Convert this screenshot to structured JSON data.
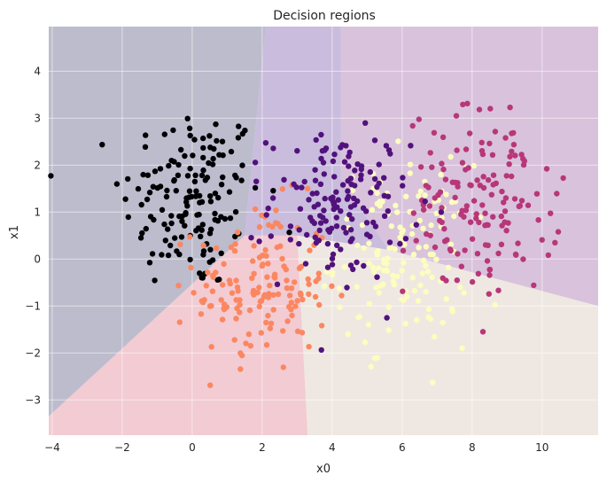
{
  "chart_data": {
    "type": "scatter",
    "title": "Decision regions",
    "xlabel": "x0",
    "ylabel": "x1",
    "xlim": [
      -4.1,
      11.6
    ],
    "ylim": [
      -3.75,
      4.95
    ],
    "x_ticks": [
      -4,
      -2,
      0,
      2,
      4,
      6,
      8,
      10
    ],
    "y_ticks": [
      -3,
      -2,
      -1,
      0,
      1,
      2,
      3,
      4
    ],
    "x_tick_labels": [
      "−4",
      "−2",
      "0",
      "2",
      "4",
      "6",
      "8",
      "10"
    ],
    "y_tick_labels": [
      "−3",
      "−2",
      "−1",
      "0",
      "1",
      "2",
      "3",
      "4"
    ],
    "grid": true,
    "background_color": "#eaeaf2",
    "region_colors": [
      "#bcbccd",
      "#f2cbd3",
      "#efe8e2",
      "#d9c2dc",
      "#c9bcdd"
    ],
    "regions": [
      {
        "points": [
          [
            -4.1,
            4.95
          ],
          [
            2.1,
            4.95
          ],
          [
            1.5,
            0.5
          ],
          [
            -4.1,
            -3.35
          ]
        ]
      },
      {
        "points": [
          [
            -4.1,
            -3.35
          ],
          [
            1.5,
            0.5
          ],
          [
            3.0,
            0.5
          ],
          [
            3.3,
            -3.75
          ],
          [
            -4.1,
            -3.75
          ]
        ]
      },
      {
        "points": [
          [
            3.0,
            0.5
          ],
          [
            5.6,
            0.2
          ],
          [
            11.6,
            -1.0
          ],
          [
            11.6,
            -3.75
          ],
          [
            3.3,
            -3.75
          ]
        ]
      },
      {
        "points": [
          [
            4.25,
            4.95
          ],
          [
            11.6,
            4.95
          ],
          [
            11.6,
            -1.0
          ],
          [
            5.6,
            0.2
          ],
          [
            4.25,
            1.7
          ]
        ]
      },
      {
        "points": [
          [
            2.1,
            4.95
          ],
          [
            4.25,
            4.95
          ],
          [
            4.25,
            1.7
          ],
          [
            5.6,
            0.2
          ],
          [
            3.0,
            0.5
          ],
          [
            1.5,
            0.5
          ]
        ]
      }
    ],
    "classes": [
      {
        "color": "#000004",
        "center": [
          0.0,
          1.3
        ],
        "spread": [
          1.0,
          1.0
        ],
        "count": 150
      },
      {
        "color": "#fb8761",
        "center": [
          2.0,
          -0.6
        ],
        "spread": [
          0.95,
          0.9
        ],
        "count": 150
      },
      {
        "color": "#fcfdbf",
        "center": [
          6.0,
          0.1
        ],
        "spread": [
          0.95,
          0.95
        ],
        "count": 150
      },
      {
        "color": "#b73779",
        "center": [
          8.3,
          1.2
        ],
        "spread": [
          1.1,
          1.0
        ],
        "count": 150
      },
      {
        "color": "#51127c",
        "center": [
          4.2,
          1.15
        ],
        "spread": [
          1.0,
          0.8
        ],
        "count": 150
      }
    ]
  }
}
